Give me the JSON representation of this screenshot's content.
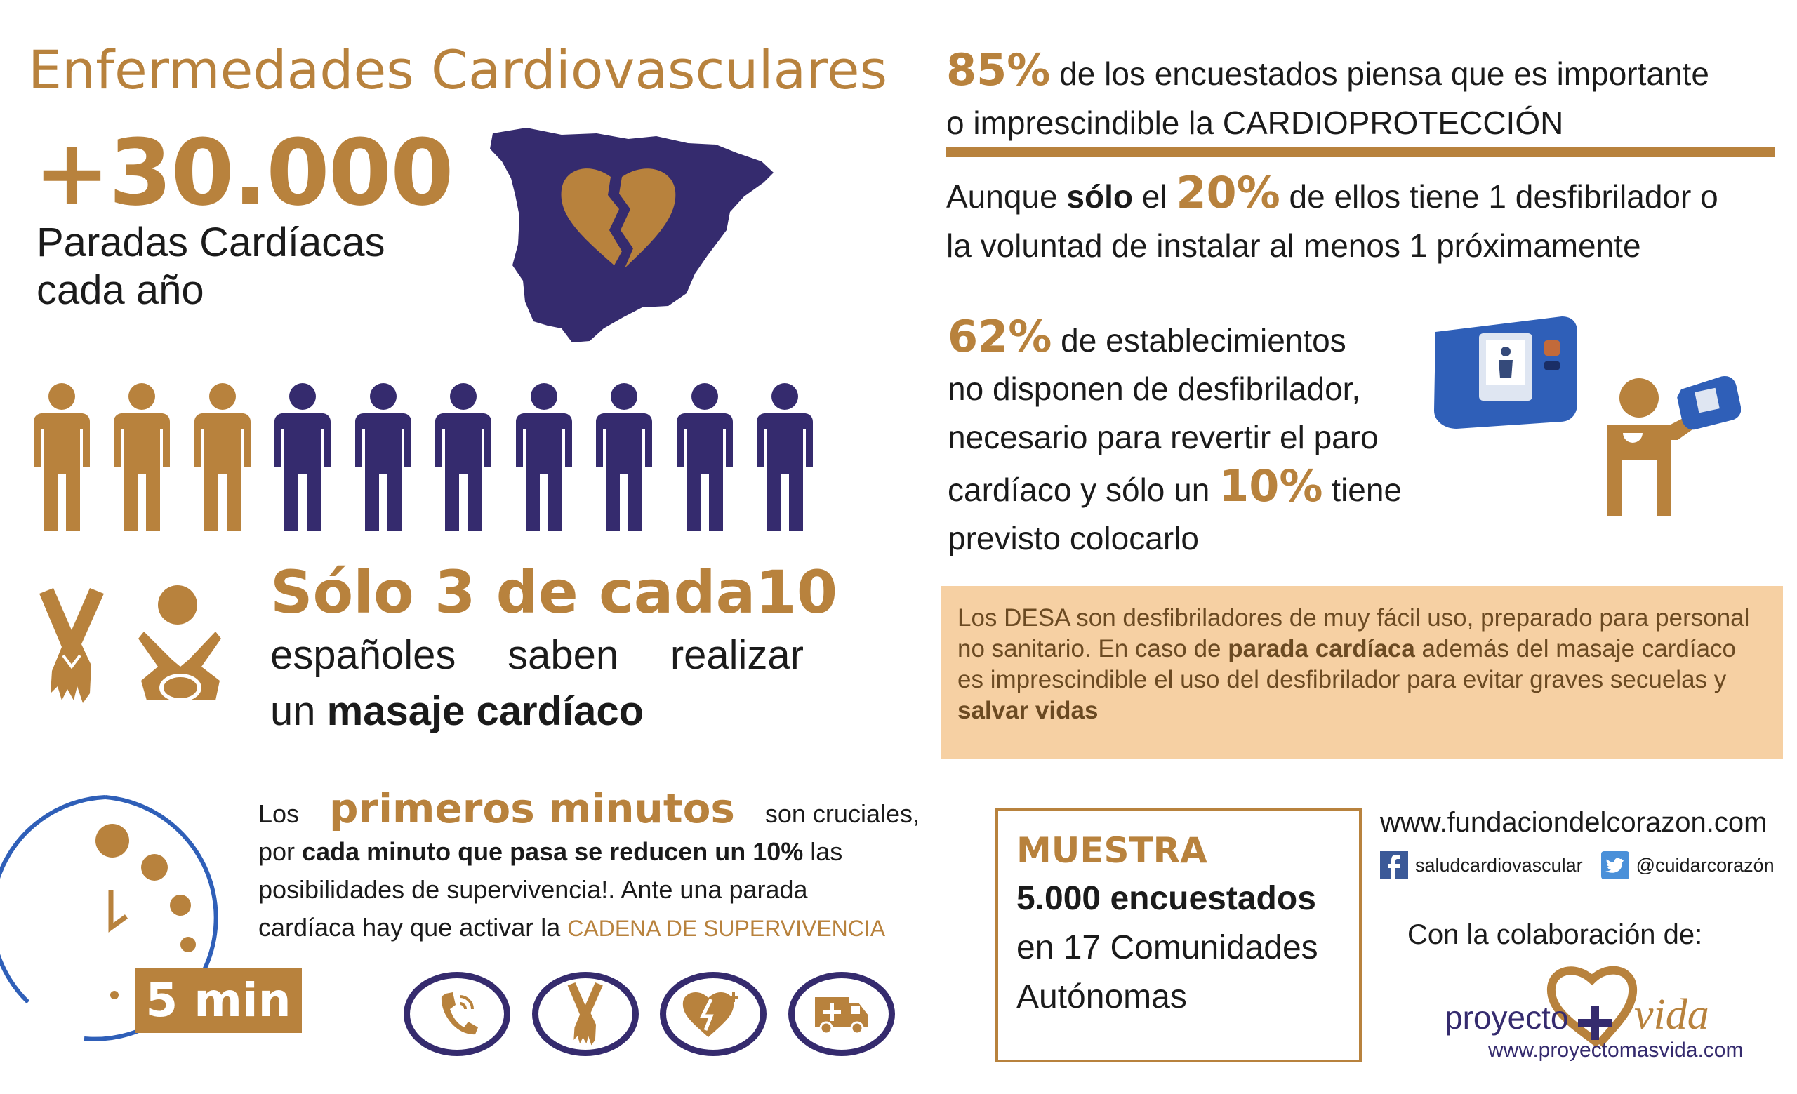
{
  "title": "Enfermedades Cardiovasculares",
  "paradas": {
    "number": "+30.000",
    "line1": "Paradas Cardíacas",
    "line2": "cada año"
  },
  "people": {
    "known": 3,
    "total": 10,
    "colors": {
      "known": "#b8823d",
      "unknown": "#352b6e"
    }
  },
  "solo": {
    "headline": "Sólo 3 de cada10",
    "line1": "españoles saben realizar",
    "line2_prefix": "un ",
    "line2_bold": "masaje cardíaco"
  },
  "minutes": {
    "prefix": "Los",
    "highlight": "primeros  minutos",
    "suffix": "son cruciales,",
    "line2_prefix": "por ",
    "line2_bold": "cada minuto que pasa se reducen un 10%",
    "line2_suffix": " las",
    "line3": "posibilidades de supervivencia!. Ante una parada",
    "line4_prefix": "cardíaca hay que activar la ",
    "cadena": "CADENA DE SUPERVIVENCIA",
    "clock_label": "5 min"
  },
  "chain_icons": [
    "phone-icon",
    "hands-icon",
    "heart-aed-icon",
    "ambulance-icon"
  ],
  "stat85": {
    "pct": "85%",
    "text1": " de los encuestados piensa que es importante",
    "text2": "o imprescindible la CARDIOPROTECCIÓN"
  },
  "stat20": {
    "pre": "Aunque ",
    "bold": "sólo",
    "mid": " el ",
    "pct": "20%",
    "text1": " de ellos tiene 1 desfibrilador o",
    "text2": "la voluntad de instalar al menos 1 próximamente"
  },
  "stat62": {
    "pct": "62%",
    "text1": " de establecimientos",
    "text2": "no disponen de desfibrilador,",
    "text3": "necesario para revertir el paro",
    "text4_pre": "cardíaco y sólo un ",
    "pct10": "10%",
    "text4_post": " tiene",
    "text5": "previsto colocarlo"
  },
  "desa": {
    "l1": "Los DESA son desfibriladores de muy fácil uso, preparado para personal",
    "l2_pre": "no sanitario. En caso de ",
    "l2_bold": "parada cardíaca",
    "l2_post": " además del masaje cardíaco",
    "l3": "es imprescindible el uso del desfibrilador para evitar graves secuelas y",
    "l4_bold": "salvar vidas"
  },
  "muestra": {
    "title": "MUESTRA",
    "count": "5.000 encuestados",
    "region": "en 17 Comunidades Autónomas"
  },
  "contact": {
    "website": "www.fundaciondelcorazon.com",
    "facebook": "saludcardiovascular",
    "twitter": "@cuidarcorazón",
    "colab": "Con la colaboración de:"
  },
  "logo": {
    "word1": "proyecto",
    "word2": "vida",
    "url": "www.proyectomasvida.com"
  },
  "colors": {
    "gold": "#b8823d",
    "navy": "#352b6e",
    "peach": "#f6d0a3",
    "aed_blue": "#2f5fb8"
  }
}
